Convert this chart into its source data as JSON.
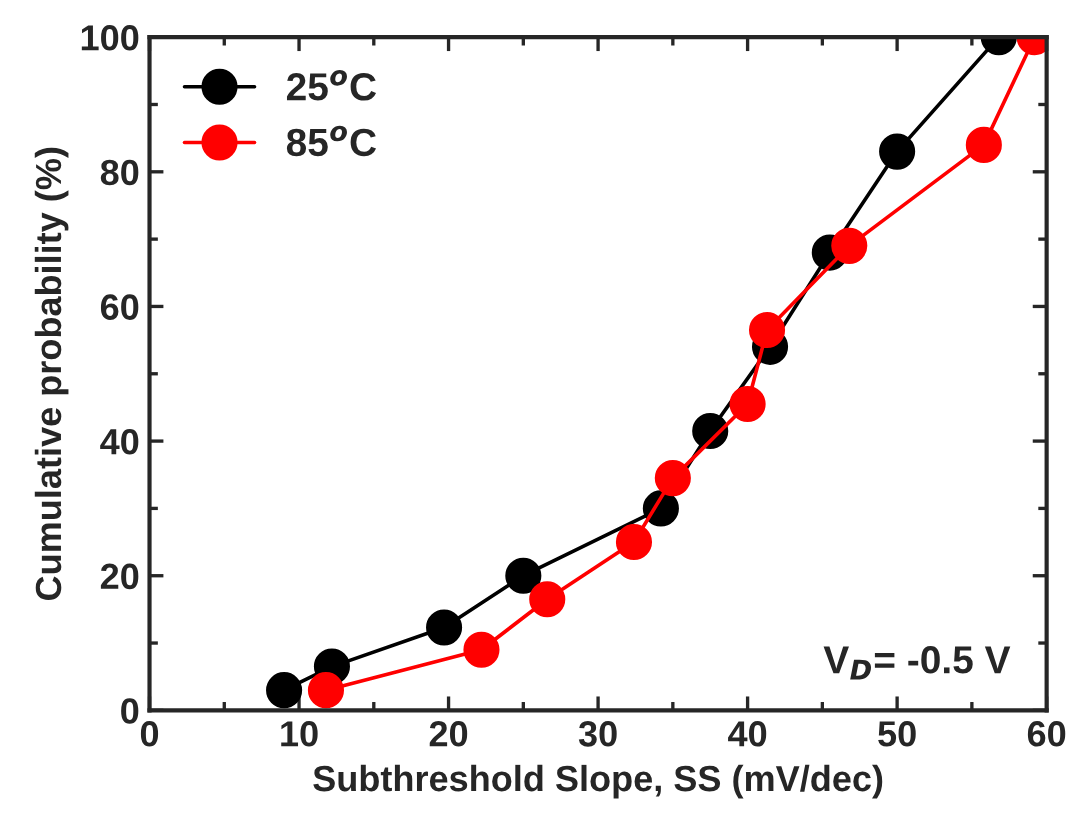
{
  "chart_data": {
    "type": "line",
    "xlabel": "Subthreshold Slope, SS (mV/dec)",
    "ylabel": "Cumulative probability (%)",
    "xlim": [
      0,
      60
    ],
    "xticks": [
      0,
      10,
      20,
      30,
      40,
      50,
      60
    ],
    "ylim": [
      0,
      100
    ],
    "yticks": [
      0,
      20,
      40,
      60,
      80,
      100
    ],
    "marker": "circle",
    "line_style": "solid",
    "legend": "top left",
    "grid": false,
    "annotations": [
      "V$_{D}$= -0.5 V"
    ],
    "series": [
      {
        "name": "25$^{o}$C",
        "color": "#000000",
        "x": [
          9,
          12.2,
          19.7,
          25,
          34.2,
          37.5,
          41.5,
          45.5,
          50,
          56.8
        ],
        "values": [
          3,
          6.5,
          12.3,
          20,
          30,
          41.5,
          54,
          68,
          83,
          100
        ]
      },
      {
        "name": "85$^{o}$C",
        "color": "#ff0000",
        "x": [
          11.8,
          22.2,
          26.6,
          32.4,
          35,
          40,
          41.3,
          46.8,
          55.8,
          59.2
        ],
        "values": [
          3,
          9,
          16.5,
          25,
          34.5,
          45.5,
          56.5,
          69,
          84,
          100
        ]
      }
    ]
  }
}
